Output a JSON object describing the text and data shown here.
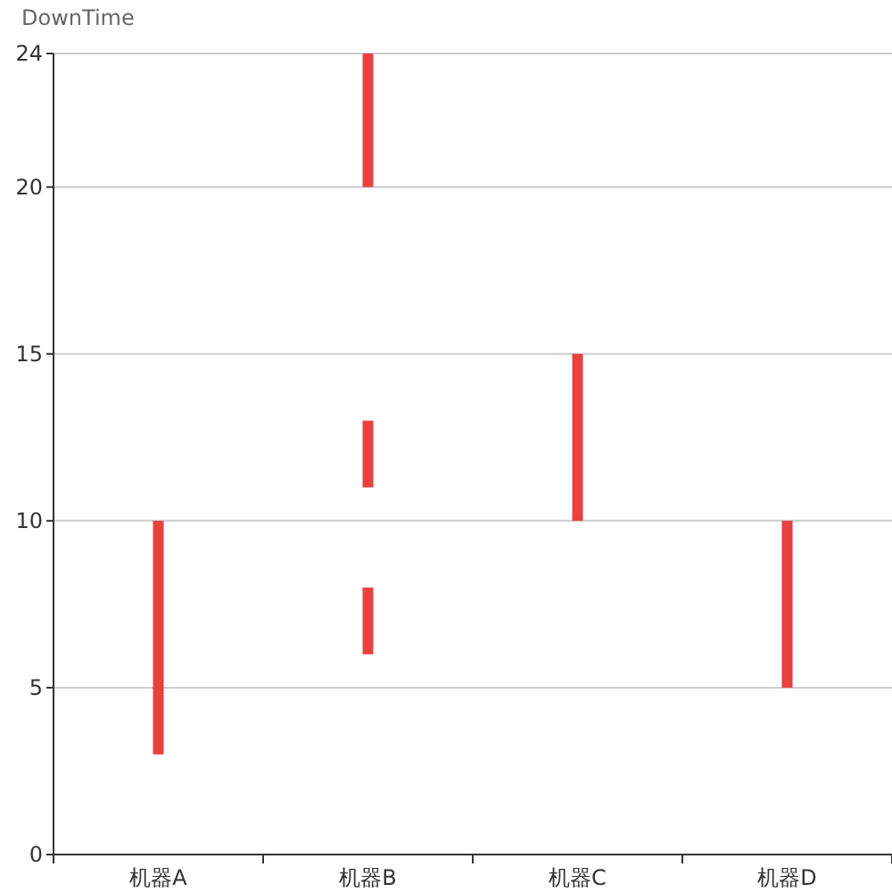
{
  "chart_data": {
    "type": "bar",
    "ylabel": "DownTime",
    "categories": [
      "机器A",
      "机器B",
      "机器C",
      "机器D"
    ],
    "series": [
      {
        "color": "#e8413e",
        "values": [
          7,
          2,
          5,
          5
        ],
        "base": [
          3,
          6,
          10,
          5
        ]
      },
      {
        "color": "#e8413e",
        "values": [
          null,
          2,
          null,
          null
        ],
        "base": [
          null,
          11,
          null,
          null
        ]
      },
      {
        "color": "#e8413e",
        "values": [
          null,
          4,
          null,
          null
        ],
        "base": [
          null,
          20,
          null,
          null
        ]
      }
    ],
    "ylim": [
      0,
      24
    ],
    "yticks": [
      0,
      5,
      10,
      15,
      20,
      24
    ],
    "grid": "y"
  }
}
